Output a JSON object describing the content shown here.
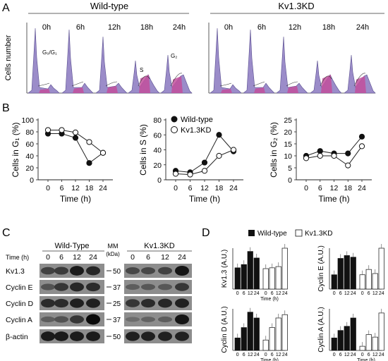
{
  "panels": {
    "a": "A",
    "b": "B",
    "c": "C",
    "d": "D"
  },
  "a": {
    "wt_title": "Wild-type",
    "kd_title": "Kv1.3KD",
    "timepoints": [
      "0h",
      "6h",
      "12h",
      "18h",
      "24h"
    ],
    "ylabel": "Cells number",
    "annot_g0g1": "G₀/G₁",
    "annot_s": "S",
    "annot_g2": "G₂"
  },
  "chart_data": [
    {
      "type": "line",
      "ylabel": "Cells in G₁ (%)",
      "xlabel": "Time (h)",
      "x": [
        0,
        6,
        12,
        18,
        24
      ],
      "xticks": [
        "0",
        "6",
        "12",
        "18",
        "24"
      ],
      "ylim": [
        0,
        100
      ],
      "yticks": [
        "0",
        "20",
        "40",
        "60",
        "80",
        "100"
      ],
      "series": [
        {
          "name": "Wild-type",
          "values": [
            77,
            77,
            70,
            28,
            45
          ]
        },
        {
          "name": "Kv1.3KD",
          "values": [
            83,
            83,
            79,
            63,
            45
          ]
        }
      ]
    },
    {
      "type": "line",
      "ylabel": "Cells in S (%)",
      "xlabel": "Time (h)",
      "x": [
        0,
        6,
        12,
        18,
        24
      ],
      "xticks": [
        "0",
        "6",
        "12",
        "18",
        "24"
      ],
      "ylim": [
        0,
        80
      ],
      "yticks": [
        "0",
        "20",
        "40",
        "60",
        "80"
      ],
      "series": [
        {
          "name": "Wild-type",
          "values": [
            12,
            10,
            23,
            60,
            38
          ]
        },
        {
          "name": "Kv1.3KD",
          "values": [
            8,
            7,
            12,
            32,
            40
          ]
        }
      ]
    },
    {
      "type": "line",
      "ylabel": "Cells in G₂ (%)",
      "xlabel": "Time (h)",
      "x": [
        0,
        6,
        12,
        18,
        24
      ],
      "xticks": [
        "0",
        "6",
        "12",
        "18",
        "24"
      ],
      "ylim": [
        0,
        25
      ],
      "yticks": [
        "0",
        "5",
        "10",
        "15",
        "20",
        "25"
      ],
      "series": [
        {
          "name": "Wild-type",
          "values": [
            10,
            12,
            11,
            11,
            18
          ]
        },
        {
          "name": "Kv1.3KD",
          "values": [
            9,
            10,
            10,
            6,
            14
          ]
        }
      ]
    },
    {
      "type": "bar",
      "ylabel": "Kv1.3 (A.U.)",
      "xlabel": "Time (h)",
      "categories": [
        "0",
        "6",
        "12",
        "24"
      ],
      "ylim": [
        0,
        1
      ],
      "series": [
        {
          "name": "Wild-type",
          "values": [
            0.52,
            0.6,
            0.92,
            0.76
          ]
        },
        {
          "name": "Kv1.3KD",
          "values": [
            0.5,
            0.52,
            0.55,
            1.0
          ]
        }
      ]
    },
    {
      "type": "bar",
      "ylabel": "Cyclin E (A.U.)",
      "xlabel": "",
      "categories": [
        "0",
        "6",
        "12",
        "24"
      ],
      "ylim": [
        0,
        1
      ],
      "series": [
        {
          "name": "Wild-type",
          "values": [
            0.35,
            0.75,
            0.82,
            0.78
          ]
        },
        {
          "name": "Kv1.3KD",
          "values": [
            0.35,
            0.48,
            0.38,
            1.0
          ]
        }
      ]
    },
    {
      "type": "bar",
      "ylabel": "Cyclin D (A.U.)",
      "xlabel": "Time (h)",
      "categories": [
        "0",
        "6",
        "12",
        "24"
      ],
      "ylim": [
        0,
        1
      ],
      "series": [
        {
          "name": "Wild-type",
          "values": [
            0.3,
            0.55,
            0.92,
            0.78
          ]
        },
        {
          "name": "Kv1.3KD",
          "values": [
            0.25,
            0.55,
            0.78,
            0.86
          ]
        }
      ]
    },
    {
      "type": "bar",
      "ylabel": "Cyclin A (A.U.)",
      "xlabel": "Time (h)",
      "categories": [
        "0",
        "6",
        "12",
        "24"
      ],
      "ylim": [
        0,
        1
      ],
      "series": [
        {
          "name": "Wild-type",
          "values": [
            0.3,
            0.48,
            0.58,
            0.78
          ]
        },
        {
          "name": "Kv1.3KD",
          "values": [
            0.1,
            0.38,
            0.32,
            0.9
          ]
        }
      ]
    }
  ],
  "legend_b": {
    "wt": "Wild-type",
    "kd": "Kv1.3KD"
  },
  "legend_d": {
    "wt": "Wild-type",
    "kd": "Kv1.3KD"
  },
  "c": {
    "wt_title": "Wild-Type",
    "kd_title": "Kv1.3KD",
    "time_label": "Time (h)",
    "wt_times": [
      "0",
      "6",
      "12",
      "24"
    ],
    "kd_times": [
      "0",
      "6",
      "12",
      "24"
    ],
    "mm_label": "MM",
    "kda_label": "(kDa)",
    "rows": [
      {
        "name": "Kv1.3",
        "marker": "50"
      },
      {
        "name": "Cyclin E",
        "marker": "37"
      },
      {
        "name": "Cyclin D",
        "marker": "25"
      },
      {
        "name": "Cyclin A",
        "marker": "37"
      },
      {
        "name": "β-actin",
        "marker": "50"
      }
    ]
  }
}
